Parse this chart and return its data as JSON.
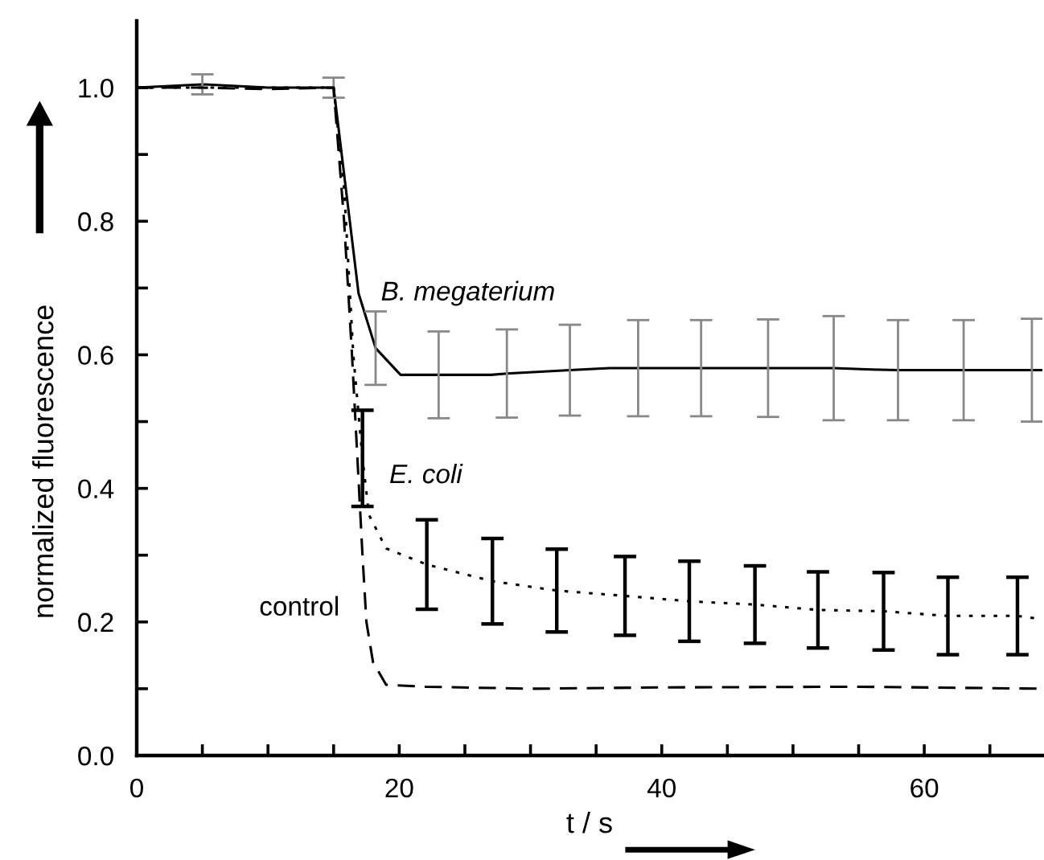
{
  "chart_data": {
    "type": "line",
    "xlabel": "t / s",
    "ylabel": "normalized fluorescence",
    "xlim": [
      0,
      69
    ],
    "ylim": [
      0,
      1.1
    ],
    "xticks": [
      0,
      {
        "value": 5,
        "label": null
      },
      {
        "value": 10,
        "label": null
      },
      {
        "value": 15,
        "label": null
      },
      20,
      {
        "value": 25,
        "label": null
      },
      {
        "value": 30,
        "label": null
      },
      {
        "value": 35,
        "label": null
      },
      40,
      {
        "value": 45,
        "label": null
      },
      {
        "value": 50,
        "label": null
      },
      {
        "value": 55,
        "label": null
      },
      60,
      {
        "value": 65,
        "label": null
      }
    ],
    "yticks": [
      {
        "value": 0,
        "label": "0.0"
      },
      {
        "value": 0.1,
        "label": null
      },
      {
        "value": 0.2,
        "label": "0.2"
      },
      {
        "value": 0.3,
        "label": null
      },
      {
        "value": 0.4,
        "label": "0.4"
      },
      {
        "value": 0.5,
        "label": null
      },
      {
        "value": 0.6,
        "label": "0.6"
      },
      {
        "value": 0.7,
        "label": null
      },
      {
        "value": 0.8,
        "label": "0.8"
      },
      {
        "value": 0.9,
        "label": null
      },
      {
        "value": 1.0,
        "label": "1.0"
      }
    ],
    "grid": false,
    "legend": false,
    "marker": "none",
    "series": [
      {
        "name": "B. megaterium",
        "color": "#000000",
        "line_style": "solid",
        "x": [
          0,
          5,
          10,
          15,
          16.9,
          18.2,
          20.1,
          23,
          27,
          28.2,
          33,
          36,
          38.2,
          43,
          48.1,
          53.1,
          56,
          58,
          63,
          68.2,
          69
        ],
        "values": [
          1.0,
          1.005,
          1.0,
          1.0,
          0.692,
          0.61,
          0.57,
          0.57,
          0.57,
          0.572,
          0.577,
          0.58,
          0.58,
          0.58,
          0.58,
          0.58,
          0.578,
          0.577,
          0.577,
          0.577,
          0.577
        ],
        "errors": [
          null,
          0.015,
          null,
          0.015,
          null,
          0.055,
          null,
          0.065,
          null,
          0.066,
          0.068,
          null,
          0.072,
          0.072,
          0.073,
          0.078,
          null,
          0.075,
          0.075,
          0.077,
          null
        ]
      },
      {
        "name": "E. coli",
        "color": "#000000",
        "line_style": "dotted",
        "x": [
          0,
          5,
          10,
          15,
          15.8,
          16.5,
          17.2,
          17.7,
          19,
          22.1,
          27.1,
          32,
          37.2,
          42.1,
          47.1,
          51.9,
          56.9,
          61.8,
          67.1,
          69
        ],
        "values": [
          1.0,
          1.0,
          1.0,
          1.0,
          0.85,
          0.6,
          0.445,
          0.36,
          0.31,
          0.286,
          0.261,
          0.247,
          0.239,
          0.231,
          0.226,
          0.218,
          0.216,
          0.209,
          0.209,
          0.204
        ],
        "errors": [
          null,
          null,
          null,
          null,
          null,
          null,
          0.072,
          null,
          null,
          0.067,
          0.064,
          0.062,
          0.059,
          0.06,
          0.058,
          0.057,
          0.058,
          0.058,
          0.058,
          null
        ]
      },
      {
        "name": "control",
        "color": "#000000",
        "line_style": "dashed",
        "x": [
          0,
          5,
          10,
          15,
          15.8,
          16.4,
          16.8,
          17.2,
          17.5,
          18,
          19,
          22,
          30,
          40,
          55,
          69
        ],
        "values": [
          1.0,
          1.0,
          0.998,
          1.0,
          0.8,
          0.6,
          0.45,
          0.3,
          0.2,
          0.14,
          0.106,
          0.103,
          0.1,
          0.102,
          0.103,
          0.1
        ]
      }
    ]
  }
}
